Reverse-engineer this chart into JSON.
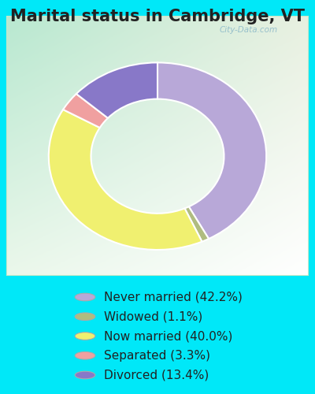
{
  "title": "Marital status in Cambridge, VT",
  "slices": [
    42.2,
    1.1,
    40.0,
    3.3,
    13.4
  ],
  "labels": [
    "Never married (42.2%)",
    "Widowed (1.1%)",
    "Now married (40.0%)",
    "Separated (3.3%)",
    "Divorced (13.4%)"
  ],
  "colors": [
    "#b8a8d8",
    "#b0bc80",
    "#f0f070",
    "#f0a0a0",
    "#8878c8"
  ],
  "bg_top_left": "#b8e8d0",
  "bg_top_right": "#e8f0e0",
  "bg_legend": "#00e8f8",
  "title_fontsize": 15,
  "legend_fontsize": 11,
  "watermark": "City-Data.com",
  "chart_border_color": "#c8e8c8"
}
